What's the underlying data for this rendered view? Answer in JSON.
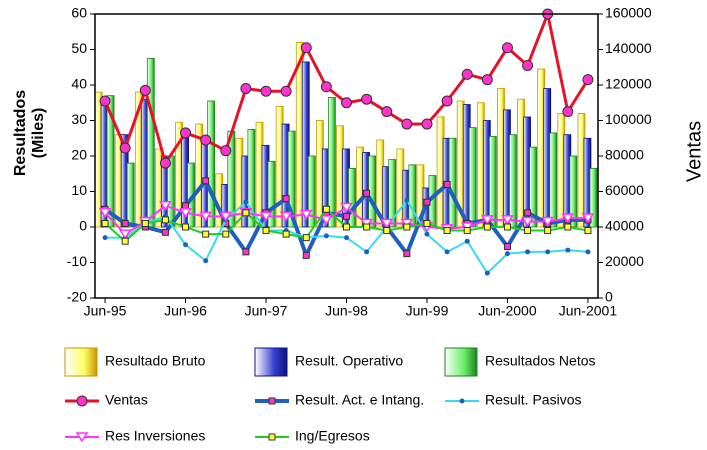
{
  "chart_data": {
    "type": "combo",
    "y_label": "Resultados (Miles)",
    "y2_label": "Ventas",
    "categories": [
      "Jun-95",
      null,
      null,
      null,
      "Jun-96",
      null,
      null,
      null,
      "Jun-97",
      null,
      null,
      null,
      "Jun-98",
      null,
      null,
      null,
      "Jun-99",
      null,
      null,
      null,
      "Jun-2000",
      null,
      null,
      null,
      "Jun-2001"
    ],
    "ylim": [
      -20,
      60
    ],
    "yticks": [
      -20,
      -10,
      0,
      10,
      20,
      30,
      40,
      50,
      60
    ],
    "y2lim": [
      0,
      160000
    ],
    "y2ticks": [
      0,
      20000,
      40000,
      60000,
      80000,
      100000,
      120000,
      140000,
      160000
    ],
    "grid": false,
    "legend": "bottom",
    "series": [
      {
        "name": "Resultado Bruto",
        "type": "bar",
        "color": "#ffff66",
        "edge": "#c89600",
        "values": [
          38,
          26,
          38,
          22,
          29.5,
          29,
          15,
          25,
          29.5,
          34,
          52,
          30,
          28.5,
          22.5,
          24.5,
          22,
          17.5,
          31,
          35.5,
          35,
          39,
          36,
          44.5,
          32,
          32
        ]
      },
      {
        "name": "Result. Operativo",
        "type": "bar",
        "color": "#3340d0",
        "edge": "#101080",
        "values": [
          36,
          26,
          36,
          20,
          25.5,
          25.5,
          12,
          20,
          23,
          29,
          46.5,
          22,
          22,
          21,
          17,
          16,
          11,
          25,
          34.5,
          30,
          33,
          31,
          39,
          26,
          25
        ]
      },
      {
        "name": "Resultados Netos",
        "type": "bar",
        "color": "#66ee66",
        "edge": "#208020",
        "values": [
          37,
          18,
          47.5,
          20,
          18,
          35.5,
          27,
          27.5,
          18.5,
          27,
          20,
          36.5,
          16.5,
          20,
          19,
          17.5,
          14.5,
          25,
          28,
          25.5,
          26,
          22.5,
          26.5,
          20,
          16.5
        ]
      },
      {
        "name": "Ventas",
        "type": "line",
        "axis": "y2",
        "color": "#e8102a",
        "width": 3,
        "marker": "circle",
        "marker_color": "#ff33cc",
        "values": [
          111000,
          84500,
          117000,
          76000,
          93000,
          89000,
          83000,
          118000,
          116500,
          116500,
          141000,
          119000,
          110000,
          112000,
          105000,
          98000,
          98000,
          111000,
          126000,
          123000,
          141000,
          131000,
          160000,
          105000,
          123000
        ]
      },
      {
        "name": "Result. Act. e Intang.",
        "type": "line",
        "color": "#1f5fbf",
        "width": 4,
        "marker": "square",
        "marker_color": "#ff33cc",
        "values": [
          5,
          1,
          0,
          -1.5,
          6,
          13,
          1,
          -7,
          4,
          8,
          -8,
          4,
          3,
          9.5,
          0,
          -7.5,
          7,
          12,
          1,
          2,
          -5.5,
          4,
          1,
          2,
          2
        ]
      },
      {
        "name": "Result. Pasivos",
        "type": "line",
        "color": "#33ddee",
        "width": 2,
        "marker": "dot",
        "marker_color": "#1f5fbf",
        "values": [
          -3,
          -3,
          1,
          3,
          -5,
          -9.5,
          2,
          7,
          -1,
          -1,
          -3,
          -2.5,
          -3,
          -7,
          0,
          7.5,
          -2,
          -7,
          -4,
          -13,
          -7.5,
          -7,
          -7,
          -6.5,
          -7
        ]
      },
      {
        "name": "Res Inversiones",
        "type": "line",
        "color": "#ff33ff",
        "width": 2,
        "marker": "triangle",
        "marker_color": "#ffffff",
        "values": [
          4,
          -2,
          1.5,
          6,
          4,
          3,
          3,
          4,
          3,
          3,
          3.5,
          2,
          5.5,
          1,
          1,
          1,
          0,
          -0.5,
          0,
          2,
          2,
          1.5,
          1.5,
          2.5,
          2.5
        ]
      },
      {
        "name": "Ing/Egresos",
        "type": "line",
        "color": "#22cc22",
        "width": 2,
        "marker": "square",
        "marker_color": "#ffff33",
        "values": [
          1,
          -4,
          1,
          2,
          0,
          -2,
          -2,
          4,
          -1,
          -2,
          -3,
          5,
          0,
          0,
          -1,
          0,
          1,
          -1,
          -1,
          0,
          0,
          -1,
          -1,
          0,
          -1
        ]
      }
    ]
  }
}
